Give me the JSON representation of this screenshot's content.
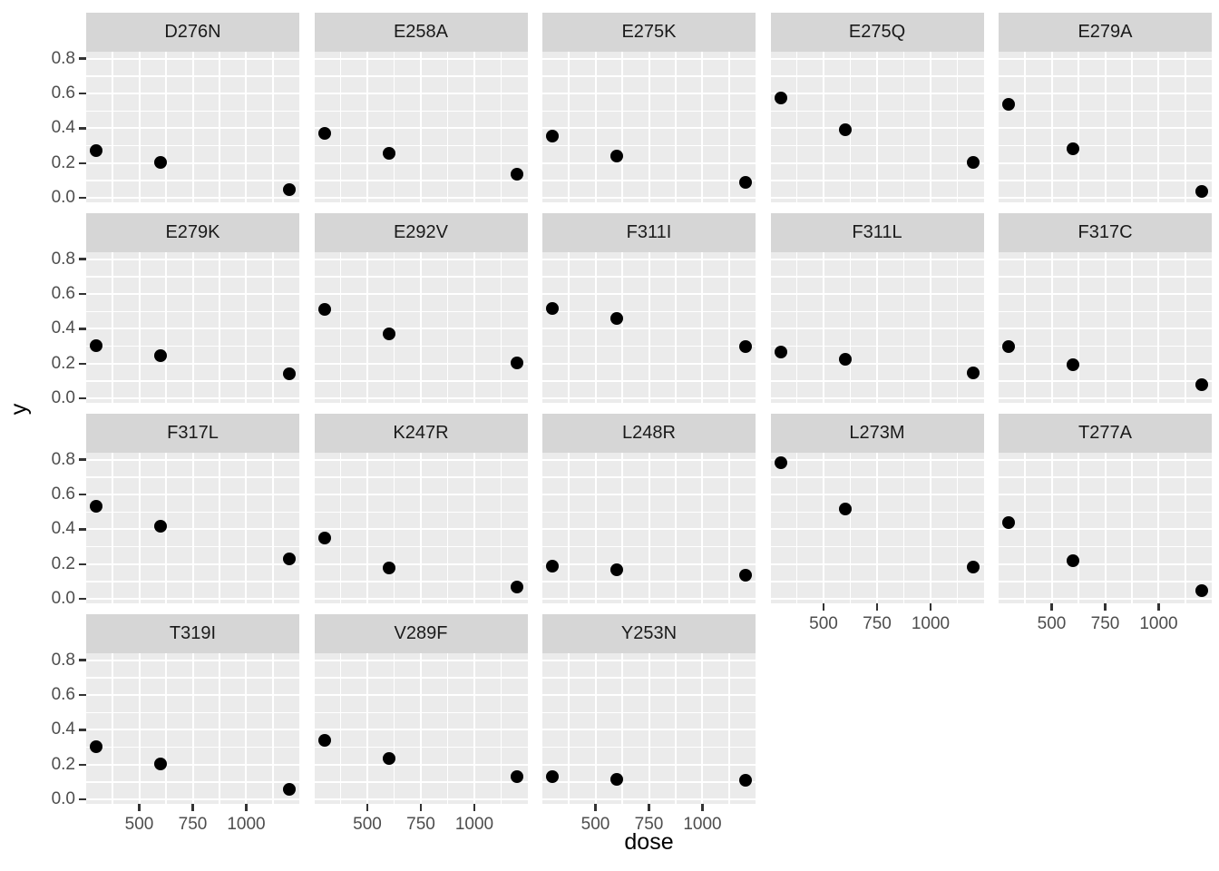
{
  "chart_data": {
    "type": "scatter",
    "title": "",
    "xlabel": "dose",
    "ylabel": "y",
    "faceted": true,
    "facet_variable_values": [
      "D276N",
      "E258A",
      "E275K",
      "E275Q",
      "E279A",
      "E279K",
      "E292V",
      "F311I",
      "F311L",
      "F317C",
      "F317L",
      "K247R",
      "L248R",
      "L273M",
      "T277A",
      "T319I",
      "V289F",
      "Y253N"
    ],
    "layout": {
      "ncol": 5,
      "nrow": 4,
      "grid": "on",
      "legend": "none",
      "theme": "ggplot-grey"
    },
    "x": [
      300,
      600,
      1200
    ],
    "facets": [
      {
        "label": "D276N",
        "values": [
          0.27,
          0.205,
          0.05
        ]
      },
      {
        "label": "E258A",
        "values": [
          0.37,
          0.255,
          0.135
        ]
      },
      {
        "label": "E275K",
        "values": [
          0.355,
          0.24,
          0.09
        ]
      },
      {
        "label": "E275Q",
        "values": [
          0.575,
          0.39,
          0.205
        ]
      },
      {
        "label": "E279A",
        "values": [
          0.54,
          0.285,
          0.04
        ]
      },
      {
        "label": "E279K",
        "values": [
          0.305,
          0.245,
          0.14
        ]
      },
      {
        "label": "E292V",
        "values": [
          0.51,
          0.37,
          0.205
        ]
      },
      {
        "label": "F311I",
        "values": [
          0.515,
          0.46,
          0.3
        ]
      },
      {
        "label": "F311L",
        "values": [
          0.265,
          0.225,
          0.145
        ]
      },
      {
        "label": "F317C",
        "values": [
          0.3,
          0.195,
          0.08
        ]
      },
      {
        "label": "F317L",
        "values": [
          0.53,
          0.42,
          0.23
        ]
      },
      {
        "label": "K247R",
        "values": [
          0.35,
          0.18,
          0.07
        ]
      },
      {
        "label": "L248R",
        "values": [
          0.19,
          0.17,
          0.135
        ]
      },
      {
        "label": "L273M",
        "values": [
          0.785,
          0.515,
          0.185
        ]
      },
      {
        "label": "T277A",
        "values": [
          0.44,
          0.22,
          0.05
        ]
      },
      {
        "label": "T319I",
        "values": [
          0.305,
          0.205,
          0.06
        ]
      },
      {
        "label": "V289F",
        "values": [
          0.34,
          0.235,
          0.13
        ]
      },
      {
        "label": "Y253N",
        "values": [
          0.13,
          0.115,
          0.11
        ]
      }
    ],
    "x_ticks": [
      500,
      750,
      1000
    ],
    "x_tick_labels": [
      "500",
      "750",
      "1000"
    ],
    "y_ticks": [
      0.8,
      0.6,
      0.4,
      0.2,
      0.0
    ],
    "y_tick_labels": [
      "0.8",
      "0.6",
      "0.4",
      "0.2",
      "0.0"
    ],
    "x_minor_breaks": [
      375,
      625,
      875,
      1125
    ],
    "y_minor_breaks": [
      0.7,
      0.5,
      0.3,
      0.1
    ],
    "xlim": [
      252,
      1248
    ],
    "ylim": [
      -0.025,
      0.84
    ],
    "colors": {
      "panel_bg": "#EBEBEB",
      "strip_bg": "#D6D6D6",
      "grid": "#FFFFFF",
      "point": "#000000",
      "tick_text": "#4D4D4D",
      "tick_mark": "#333333",
      "strip_text": "#1A1A1A",
      "axis_title": "#000000"
    }
  }
}
